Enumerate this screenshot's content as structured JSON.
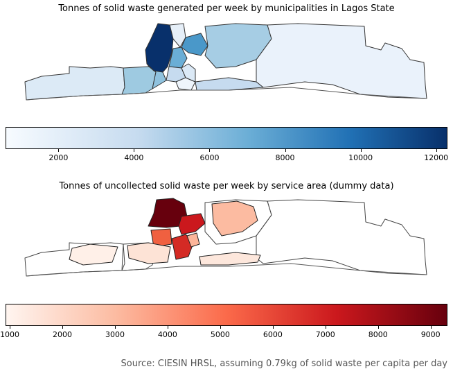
{
  "map1": {
    "title": "Tonnes of solid waste generated per week by municipalities in Lagos State",
    "colorbar": {
      "scheme": "Blues",
      "colors": [
        "#f7fbff",
        "#c6dbef",
        "#6baed6",
        "#2171b5",
        "#08306b"
      ],
      "min": 600,
      "max": 12300,
      "ticks": [
        "2000",
        "4000",
        "6000",
        "8000",
        "10000",
        "12000"
      ],
      "tick_values": [
        2000,
        4000,
        6000,
        8000,
        10000,
        12000
      ]
    }
  },
  "map2": {
    "title": "Tonnes of uncollected solid waste per week by service area (dummy data)",
    "colorbar": {
      "scheme": "Reds",
      "colors": [
        "#fff5f0",
        "#fcbba1",
        "#fb6a4a",
        "#cb181d",
        "#67000d"
      ],
      "min": 920,
      "max": 9320,
      "ticks": [
        "1000",
        "2000",
        "3000",
        "4000",
        "5000",
        "6000",
        "7000",
        "8000",
        "9000"
      ],
      "tick_values": [
        1000,
        2000,
        3000,
        4000,
        5000,
        6000,
        7000,
        8000,
        9000
      ]
    }
  },
  "source": "Source: CIESIN HRSL, assuming 0.79kg of solid waste per capita per day"
}
